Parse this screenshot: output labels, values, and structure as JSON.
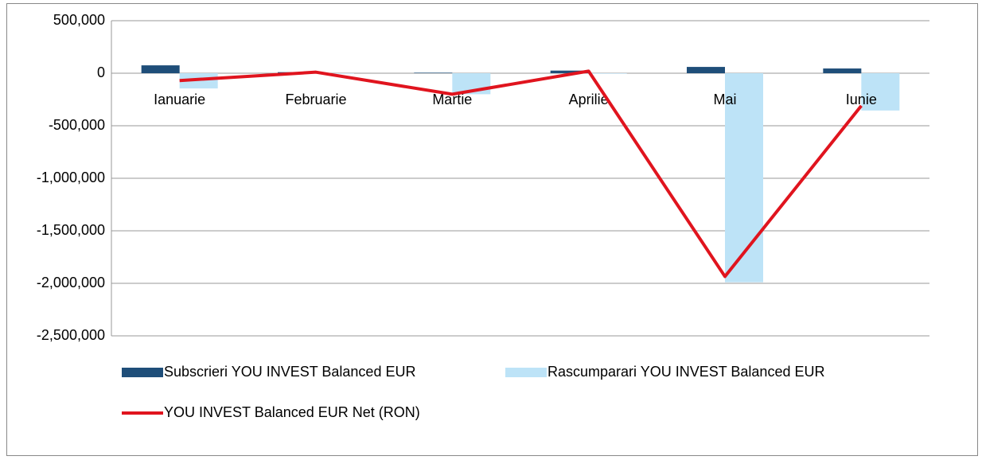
{
  "chart_data": {
    "type": "bar",
    "categories": [
      "Ianuarie",
      "Februarie",
      "Martie",
      "Aprilie",
      "Mai",
      "Iunie"
    ],
    "series": [
      {
        "name": "Subscrieri YOU INVEST Balanced EUR",
        "type": "bar",
        "color": "#1f4e79",
        "values": [
          75000,
          10000,
          5000,
          25000,
          60000,
          45000
        ]
      },
      {
        "name": "Rascumparari YOU INVEST Balanced EUR",
        "type": "bar",
        "color": "#bde3f7",
        "values": [
          -145000,
          -5000,
          -200000,
          -5000,
          -1990000,
          -355000
        ]
      },
      {
        "name": "YOU INVEST Balanced EUR Net (RON)",
        "type": "line",
        "color": "#e0141e",
        "values": [
          -70000,
          10000,
          -200000,
          20000,
          -1935000,
          -310000
        ]
      }
    ],
    "ylim": [
      -2500000,
      500000
    ],
    "yticks": [
      {
        "value": -2500000,
        "label": "-2,500,000"
      },
      {
        "value": -2000000,
        "label": "-2,000,000"
      },
      {
        "value": -1500000,
        "label": "-1,500,000"
      },
      {
        "value": -1000000,
        "label": "-1,000,000"
      },
      {
        "value": -500000,
        "label": "-500,000"
      },
      0,
      {
        "value": 500000,
        "label": "500,000"
      }
    ],
    "grid": true,
    "legend": "bottom"
  }
}
